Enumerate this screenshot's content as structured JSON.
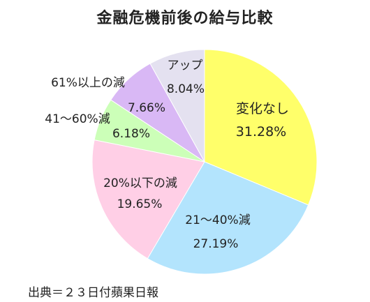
{
  "chart_data": {
    "type": "pie",
    "title": "金融危機前後の給与比較",
    "slices": [
      {
        "label": "変化なし",
        "value": 31.28,
        "value_label": "31.28%",
        "color": "#ffff6a"
      },
      {
        "label": "21～40%減",
        "value": 27.19,
        "value_label": "27.19%",
        "color": "#b3e4fd"
      },
      {
        "label": "20%以下の減",
        "value": 19.65,
        "value_label": "19.65%",
        "color": "#ffcfe6"
      },
      {
        "label": "41～60%減",
        "value": 6.18,
        "value_label": "6.18%",
        "color": "#ccffb8"
      },
      {
        "label": "61%以上の減",
        "value": 7.66,
        "value_label": "7.66%",
        "color": "#d9b8f5"
      },
      {
        "label": "アップ",
        "value": 8.04,
        "value_label": "8.04%",
        "color": "#e4e1f0"
      }
    ],
    "start_angle_deg": 0,
    "direction": "clockwise"
  },
  "source": "出典＝２３日付蘋果日報"
}
